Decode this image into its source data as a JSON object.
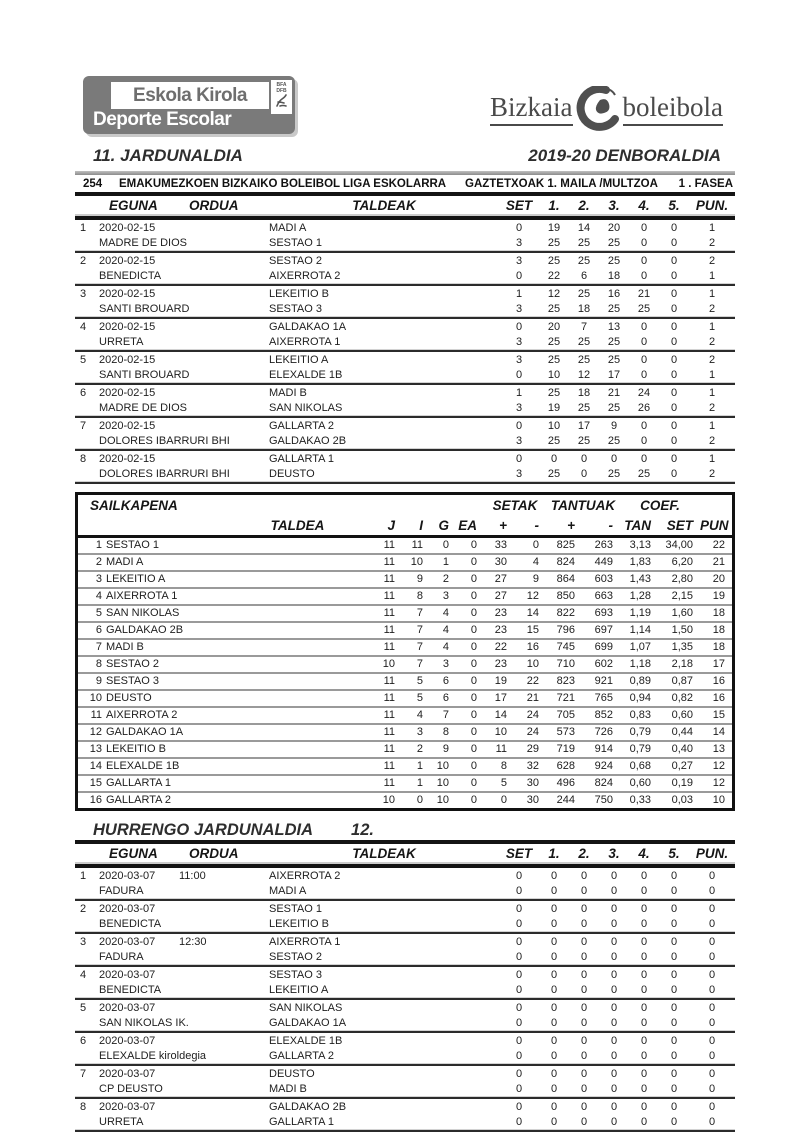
{
  "colors": {
    "bar_black": "#141414",
    "logo_gray": "#7a7a7a",
    "brand_gray": "#4f4f4f",
    "text": "#222222"
  },
  "header": {
    "logo": {
      "line1": "Eskola Kirola",
      "line2": "Deporte Escolar",
      "badge_top": "BFA",
      "badge_bottom": "DFB"
    },
    "brand": {
      "left": "Bizkaia",
      "right": "boleibola"
    },
    "matchday_title": "11. JARDUNALDIA",
    "season_title": "2019-20 DENBORALDIA",
    "league_bar": {
      "code": "254",
      "name": "EMAKUMEZKOEN BIZKAIKO BOLEIBOL LIGA ESKOLARRA",
      "category": "GAZTETXOAK  1. MAILA /MULTZOA",
      "phase": "1 . FASEA"
    }
  },
  "results": {
    "columns": {
      "eguna": "EGUNA",
      "ordua": "ORDUA",
      "taldeak": "TALDEAK",
      "set": "SET",
      "s1": "1.",
      "s2": "2.",
      "s3": "3.",
      "s4": "4.",
      "s5": "5.",
      "pun": "PUN."
    },
    "matches": [
      {
        "num": "1",
        "rows": [
          {
            "date": "2020-02-15",
            "time": "",
            "team": "MADI A",
            "set": "0",
            "sets": [
              "19",
              "14",
              "20",
              "0",
              "0"
            ],
            "pun": "1"
          },
          {
            "club": "MADRE DE DIOS",
            "team": "SESTAO 1",
            "set": "3",
            "sets": [
              "25",
              "25",
              "25",
              "0",
              "0"
            ],
            "pun": "2"
          }
        ]
      },
      {
        "num": "2",
        "rows": [
          {
            "date": "2020-02-15",
            "time": "",
            "team": "SESTAO 2",
            "set": "3",
            "sets": [
              "25",
              "25",
              "25",
              "0",
              "0"
            ],
            "pun": "2"
          },
          {
            "club": "BENEDICTA",
            "team": "AIXERROTA 2",
            "set": "0",
            "sets": [
              "22",
              "6",
              "18",
              "0",
              "0"
            ],
            "pun": "1"
          }
        ]
      },
      {
        "num": "3",
        "rows": [
          {
            "date": "2020-02-15",
            "time": "",
            "team": "LEKEITIO B",
            "set": "1",
            "sets": [
              "12",
              "25",
              "16",
              "21",
              "0"
            ],
            "pun": "1"
          },
          {
            "club": "SANTI BROUARD",
            "team": "SESTAO 3",
            "set": "3",
            "sets": [
              "25",
              "18",
              "25",
              "25",
              "0"
            ],
            "pun": "2"
          }
        ]
      },
      {
        "num": "4",
        "rows": [
          {
            "date": "2020-02-15",
            "time": "",
            "team": "GALDAKAO 1A",
            "set": "0",
            "sets": [
              "20",
              "7",
              "13",
              "0",
              "0"
            ],
            "pun": "1"
          },
          {
            "club": "URRETA",
            "team": "AIXERROTA 1",
            "set": "3",
            "sets": [
              "25",
              "25",
              "25",
              "0",
              "0"
            ],
            "pun": "2"
          }
        ]
      },
      {
        "num": "5",
        "rows": [
          {
            "date": "2020-02-15",
            "time": "",
            "team": "LEKEITIO A",
            "set": "3",
            "sets": [
              "25",
              "25",
              "25",
              "0",
              "0"
            ],
            "pun": "2"
          },
          {
            "club": "SANTI BROUARD",
            "team": "ELEXALDE 1B",
            "set": "0",
            "sets": [
              "10",
              "12",
              "17",
              "0",
              "0"
            ],
            "pun": "1"
          }
        ]
      },
      {
        "num": "6",
        "rows": [
          {
            "date": "2020-02-15",
            "time": "",
            "team": "MADI B",
            "set": "1",
            "sets": [
              "25",
              "18",
              "21",
              "24",
              "0"
            ],
            "pun": "1"
          },
          {
            "club": "MADRE DE DIOS",
            "team": "SAN NIKOLAS",
            "set": "3",
            "sets": [
              "19",
              "25",
              "25",
              "26",
              "0"
            ],
            "pun": "2"
          }
        ]
      },
      {
        "num": "7",
        "rows": [
          {
            "date": "2020-02-15",
            "time": "",
            "team": "GALLARTA 2",
            "set": "0",
            "sets": [
              "10",
              "17",
              "9",
              "0",
              "0"
            ],
            "pun": "1"
          },
          {
            "club": "DOLORES IBARRURI BHI",
            "team": "GALDAKAO 2B",
            "set": "3",
            "sets": [
              "25",
              "25",
              "25",
              "0",
              "0"
            ],
            "pun": "2"
          }
        ]
      },
      {
        "num": "8",
        "rows": [
          {
            "date": "2020-02-15",
            "time": "",
            "team": "GALLARTA 1",
            "set": "0",
            "sets": [
              "0",
              "0",
              "0",
              "0",
              "0"
            ],
            "pun": "1"
          },
          {
            "club": "DOLORES IBARRURI BHI",
            "team": "DEUSTO",
            "set": "3",
            "sets": [
              "25",
              "0",
              "25",
              "25",
              "0"
            ],
            "pun": "2"
          }
        ]
      }
    ]
  },
  "standings": {
    "title": "SAILKAPENA",
    "groups": {
      "setak": "SETAK",
      "tantuak": "TANTUAK",
      "coef": "COEF."
    },
    "columns": {
      "taldea": "TALDEA",
      "j": "J",
      "i": "I",
      "g": "G",
      "ea": "EA",
      "set_plus": "+",
      "set_minus": "-",
      "tan_plus": "+",
      "tan_minus": "-",
      "tan": "TAN",
      "set": "SET",
      "pun": "PUN"
    },
    "rows": [
      {
        "pos": "1",
        "team": "SESTAO 1",
        "j": "11",
        "i": "11",
        "g": "0",
        "ea": "0",
        "sp": "33",
        "sm": "0",
        "tp": "825",
        "tm": "263",
        "ctan": "3,13",
        "cset": "34,00",
        "pun": "22"
      },
      {
        "pos": "2",
        "team": "MADI A",
        "j": "11",
        "i": "10",
        "g": "1",
        "ea": "0",
        "sp": "30",
        "sm": "4",
        "tp": "824",
        "tm": "449",
        "ctan": "1,83",
        "cset": "6,20",
        "pun": "21"
      },
      {
        "pos": "3",
        "team": "LEKEITIO A",
        "j": "11",
        "i": "9",
        "g": "2",
        "ea": "0",
        "sp": "27",
        "sm": "9",
        "tp": "864",
        "tm": "603",
        "ctan": "1,43",
        "cset": "2,80",
        "pun": "20"
      },
      {
        "pos": "4",
        "team": "AIXERROTA 1",
        "j": "11",
        "i": "8",
        "g": "3",
        "ea": "0",
        "sp": "27",
        "sm": "12",
        "tp": "850",
        "tm": "663",
        "ctan": "1,28",
        "cset": "2,15",
        "pun": "19"
      },
      {
        "pos": "5",
        "team": "SAN NIKOLAS",
        "j": "11",
        "i": "7",
        "g": "4",
        "ea": "0",
        "sp": "23",
        "sm": "14",
        "tp": "822",
        "tm": "693",
        "ctan": "1,19",
        "cset": "1,60",
        "pun": "18"
      },
      {
        "pos": "6",
        "team": "GALDAKAO 2B",
        "j": "11",
        "i": "7",
        "g": "4",
        "ea": "0",
        "sp": "23",
        "sm": "15",
        "tp": "796",
        "tm": "697",
        "ctan": "1,14",
        "cset": "1,50",
        "pun": "18"
      },
      {
        "pos": "7",
        "team": "MADI B",
        "j": "11",
        "i": "7",
        "g": "4",
        "ea": "0",
        "sp": "22",
        "sm": "16",
        "tp": "745",
        "tm": "699",
        "ctan": "1,07",
        "cset": "1,35",
        "pun": "18"
      },
      {
        "pos": "8",
        "team": "SESTAO 2",
        "j": "10",
        "i": "7",
        "g": "3",
        "ea": "0",
        "sp": "23",
        "sm": "10",
        "tp": "710",
        "tm": "602",
        "ctan": "1,18",
        "cset": "2,18",
        "pun": "17"
      },
      {
        "pos": "9",
        "team": "SESTAO 3",
        "j": "11",
        "i": "5",
        "g": "6",
        "ea": "0",
        "sp": "19",
        "sm": "22",
        "tp": "823",
        "tm": "921",
        "ctan": "0,89",
        "cset": "0,87",
        "pun": "16"
      },
      {
        "pos": "10",
        "team": "DEUSTO",
        "j": "11",
        "i": "5",
        "g": "6",
        "ea": "0",
        "sp": "17",
        "sm": "21",
        "tp": "721",
        "tm": "765",
        "ctan": "0,94",
        "cset": "0,82",
        "pun": "16"
      },
      {
        "pos": "11",
        "team": "AIXERROTA 2",
        "j": "11",
        "i": "4",
        "g": "7",
        "ea": "0",
        "sp": "14",
        "sm": "24",
        "tp": "705",
        "tm": "852",
        "ctan": "0,83",
        "cset": "0,60",
        "pun": "15"
      },
      {
        "pos": "12",
        "team": "GALDAKAO 1A",
        "j": "11",
        "i": "3",
        "g": "8",
        "ea": "0",
        "sp": "10",
        "sm": "24",
        "tp": "573",
        "tm": "726",
        "ctan": "0,79",
        "cset": "0,44",
        "pun": "14"
      },
      {
        "pos": "13",
        "team": "LEKEITIO B",
        "j": "11",
        "i": "2",
        "g": "9",
        "ea": "0",
        "sp": "11",
        "sm": "29",
        "tp": "719",
        "tm": "914",
        "ctan": "0,79",
        "cset": "0,40",
        "pun": "13"
      },
      {
        "pos": "14",
        "team": "ELEXALDE 1B",
        "j": "11",
        "i": "1",
        "g": "10",
        "ea": "0",
        "sp": "8",
        "sm": "32",
        "tp": "628",
        "tm": "924",
        "ctan": "0,68",
        "cset": "0,27",
        "pun": "12"
      },
      {
        "pos": "15",
        "team": "GALLARTA 1",
        "j": "11",
        "i": "1",
        "g": "10",
        "ea": "0",
        "sp": "5",
        "sm": "30",
        "tp": "496",
        "tm": "824",
        "ctan": "0,60",
        "cset": "0,19",
        "pun": "12"
      },
      {
        "pos": "16",
        "team": "GALLARTA 2",
        "j": "10",
        "i": "0",
        "g": "10",
        "ea": "0",
        "sp": "0",
        "sm": "30",
        "tp": "244",
        "tm": "750",
        "ctan": "0,33",
        "cset": "0,03",
        "pun": "10"
      }
    ]
  },
  "next": {
    "title": "HURRENGO JARDUNALDIA",
    "number": "12.",
    "columns": {
      "eguna": "EGUNA",
      "ordua": "ORDUA",
      "taldeak": "TALDEAK",
      "set": "SET",
      "s1": "1.",
      "s2": "2.",
      "s3": "3.",
      "s4": "4.",
      "s5": "5.",
      "pun": "PUN."
    },
    "matches": [
      {
        "num": "1",
        "rows": [
          {
            "date": "2020-03-07",
            "time": "11:00",
            "team": "AIXERROTA 2",
            "set": "0",
            "sets": [
              "0",
              "0",
              "0",
              "0",
              "0"
            ],
            "pun": "0"
          },
          {
            "club": "FADURA",
            "team": "MADI A",
            "set": "0",
            "sets": [
              "0",
              "0",
              "0",
              "0",
              "0"
            ],
            "pun": "0"
          }
        ]
      },
      {
        "num": "2",
        "rows": [
          {
            "date": "2020-03-07",
            "time": "",
            "team": "SESTAO 1",
            "set": "0",
            "sets": [
              "0",
              "0",
              "0",
              "0",
              "0"
            ],
            "pun": "0"
          },
          {
            "club": "BENEDICTA",
            "team": "LEKEITIO B",
            "set": "0",
            "sets": [
              "0",
              "0",
              "0",
              "0",
              "0"
            ],
            "pun": "0"
          }
        ]
      },
      {
        "num": "3",
        "rows": [
          {
            "date": "2020-03-07",
            "time": "12:30",
            "team": "AIXERROTA 1",
            "set": "0",
            "sets": [
              "0",
              "0",
              "0",
              "0",
              "0"
            ],
            "pun": "0"
          },
          {
            "club": "FADURA",
            "team": "SESTAO 2",
            "set": "0",
            "sets": [
              "0",
              "0",
              "0",
              "0",
              "0"
            ],
            "pun": "0"
          }
        ]
      },
      {
        "num": "4",
        "rows": [
          {
            "date": "2020-03-07",
            "time": "",
            "team": "SESTAO 3",
            "set": "0",
            "sets": [
              "0",
              "0",
              "0",
              "0",
              "0"
            ],
            "pun": "0"
          },
          {
            "club": "BENEDICTA",
            "team": "LEKEITIO A",
            "set": "0",
            "sets": [
              "0",
              "0",
              "0",
              "0",
              "0"
            ],
            "pun": "0"
          }
        ]
      },
      {
        "num": "5",
        "rows": [
          {
            "date": "2020-03-07",
            "time": "",
            "team": "SAN NIKOLAS",
            "set": "0",
            "sets": [
              "0",
              "0",
              "0",
              "0",
              "0"
            ],
            "pun": "0"
          },
          {
            "club": "SAN NIKOLAS IK.",
            "team": "GALDAKAO 1A",
            "set": "0",
            "sets": [
              "0",
              "0",
              "0",
              "0",
              "0"
            ],
            "pun": "0"
          }
        ]
      },
      {
        "num": "6",
        "rows": [
          {
            "date": "2020-03-07",
            "time": "",
            "team": "ELEXALDE 1B",
            "set": "0",
            "sets": [
              "0",
              "0",
              "0",
              "0",
              "0"
            ],
            "pun": "0"
          },
          {
            "club": "ELEXALDE kiroldegia",
            "team": "GALLARTA 2",
            "set": "0",
            "sets": [
              "0",
              "0",
              "0",
              "0",
              "0"
            ],
            "pun": "0"
          }
        ]
      },
      {
        "num": "7",
        "rows": [
          {
            "date": "2020-03-07",
            "time": "",
            "team": "DEUSTO",
            "set": "0",
            "sets": [
              "0",
              "0",
              "0",
              "0",
              "0"
            ],
            "pun": "0"
          },
          {
            "club": "CP DEUSTO",
            "team": "MADI B",
            "set": "0",
            "sets": [
              "0",
              "0",
              "0",
              "0",
              "0"
            ],
            "pun": "0"
          }
        ]
      },
      {
        "num": "8",
        "rows": [
          {
            "date": "2020-03-07",
            "time": "",
            "team": "GALDAKAO 2B",
            "set": "0",
            "sets": [
              "0",
              "0",
              "0",
              "0",
              "0"
            ],
            "pun": "0"
          },
          {
            "club": "URRETA",
            "team": "GALLARTA 1",
            "set": "0",
            "sets": [
              "0",
              "0",
              "0",
              "0",
              "0"
            ],
            "pun": "0"
          }
        ]
      }
    ]
  }
}
